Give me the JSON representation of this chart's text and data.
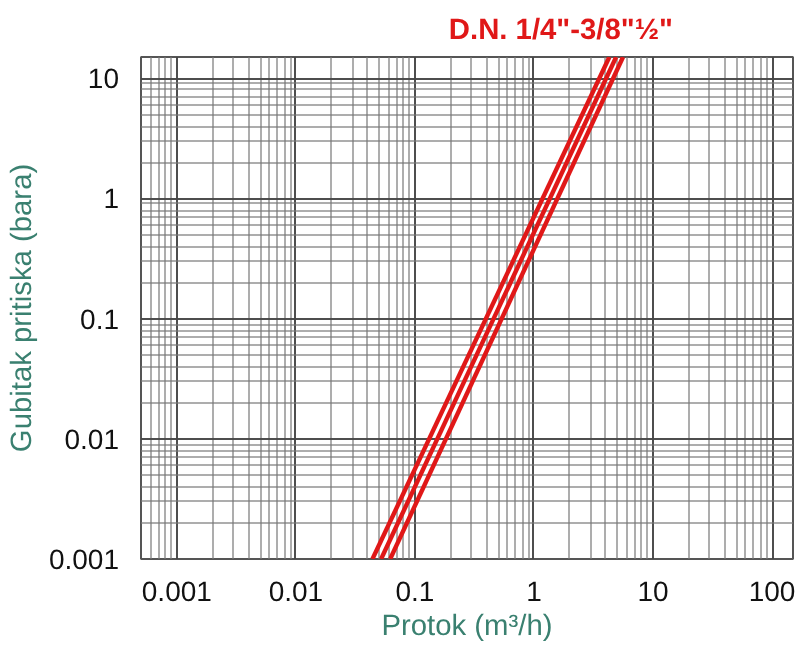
{
  "chart_data": {
    "type": "line",
    "title": "D.N. 1/4\"-3/8\"½\"",
    "xlabel": "Protok (m³/h)",
    "ylabel": "Gubitak pritiska (bara)",
    "log": "xy",
    "grid": true,
    "xlim": [
      0.0005,
      150
    ],
    "ylim": [
      0.001,
      15
    ],
    "xticks": [
      0.001,
      0.01,
      0.1,
      1,
      10,
      100
    ],
    "yticks": [
      0.001,
      0.01,
      0.1,
      1,
      10
    ],
    "series": [
      {
        "color": "#e01818",
        "x": [
          0.044,
          4.3
        ],
        "values": [
          0.001,
          15
        ]
      },
      {
        "color": "#e01818",
        "x": [
          0.052,
          4.9
        ],
        "values": [
          0.001,
          15
        ]
      },
      {
        "color": "#e01818",
        "x": [
          0.062,
          5.6
        ],
        "values": [
          0.001,
          15
        ]
      }
    ]
  }
}
